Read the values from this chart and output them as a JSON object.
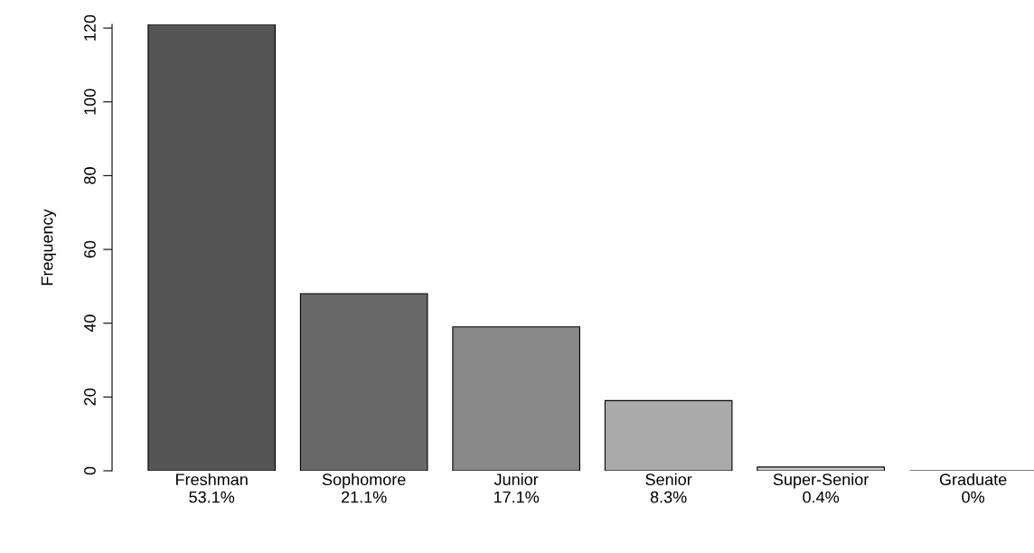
{
  "chart_data": {
    "type": "bar",
    "ylabel": "Frequency",
    "categories": [
      "Freshman\n53.1%",
      "Sophomore\n21.1%",
      "Junior\n17.1%",
      "Senior\n8.3%",
      "Super-Senior\n0.4%",
      "Graduate\n0%"
    ],
    "values": [
      121,
      48,
      39,
      19,
      1,
      0
    ],
    "colors": [
      "#555555",
      "#686868",
      "#888888",
      "#aaaaaa",
      "#cccccc",
      "#000000"
    ],
    "ylim": [
      0,
      121
    ],
    "yticks": [
      0,
      20,
      40,
      60,
      80,
      100,
      120
    ],
    "grid": false,
    "legend": false
  }
}
